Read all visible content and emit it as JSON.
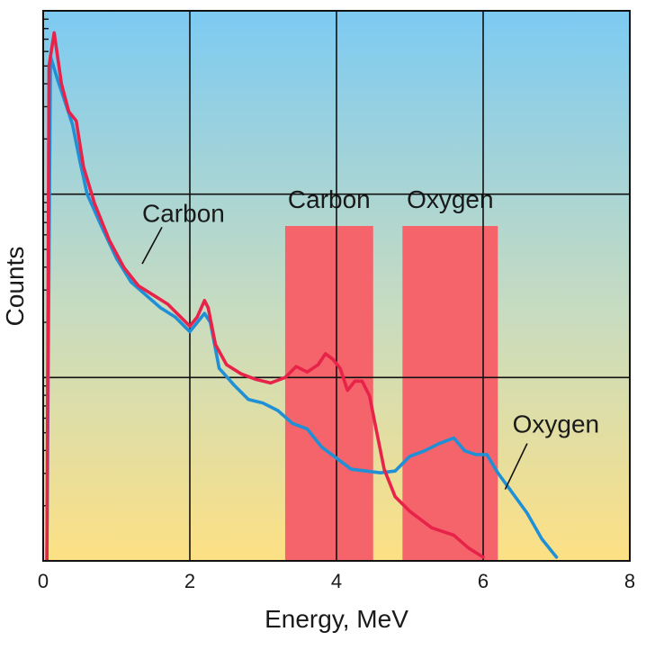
{
  "chart_data": {
    "type": "line",
    "title": "",
    "xlabel": "Energy, MeV",
    "ylabel": "Counts",
    "xlim": [
      0,
      8
    ],
    "y_scale": "log",
    "y_decades": 3,
    "x_ticks": [
      "0",
      "2",
      "4",
      "6",
      "8"
    ],
    "grid": true,
    "colors": {
      "bg_top": "#7ccaf2",
      "bg_mid": "#c8dcc0",
      "bg_bottom": "#fde084",
      "carbon": "#e8234a",
      "oxygen": "#1f8fd6",
      "band": "#f4646a",
      "grid": "#111111"
    },
    "bands": [
      {
        "label": "Carbon",
        "x_start": 3.3,
        "x_end": 4.5
      },
      {
        "label": "Oxygen",
        "x_start": 4.9,
        "x_end": 6.2
      }
    ],
    "series": [
      {
        "name": "Carbon",
        "points": [
          [
            0.05,
            0.0
          ],
          [
            0.08,
            2.7
          ],
          [
            0.15,
            2.88
          ],
          [
            0.25,
            2.6
          ],
          [
            0.35,
            2.45
          ],
          [
            0.45,
            2.4
          ],
          [
            0.55,
            2.15
          ],
          [
            0.7,
            1.95
          ],
          [
            0.9,
            1.75
          ],
          [
            1.1,
            1.6
          ],
          [
            1.3,
            1.5
          ],
          [
            1.5,
            1.45
          ],
          [
            1.7,
            1.4
          ],
          [
            1.9,
            1.32
          ],
          [
            2.0,
            1.28
          ],
          [
            2.1,
            1.33
          ],
          [
            2.2,
            1.42
          ],
          [
            2.25,
            1.38
          ],
          [
            2.35,
            1.18
          ],
          [
            2.5,
            1.07
          ],
          [
            2.7,
            1.02
          ],
          [
            2.9,
            0.99
          ],
          [
            3.1,
            0.97
          ],
          [
            3.3,
            1.0
          ],
          [
            3.45,
            1.06
          ],
          [
            3.6,
            1.03
          ],
          [
            3.75,
            1.07
          ],
          [
            3.85,
            1.13
          ],
          [
            3.95,
            1.1
          ],
          [
            4.05,
            1.05
          ],
          [
            4.15,
            0.93
          ],
          [
            4.25,
            0.98
          ],
          [
            4.35,
            0.98
          ],
          [
            4.45,
            0.9
          ],
          [
            4.55,
            0.7
          ],
          [
            4.65,
            0.5
          ],
          [
            4.8,
            0.35
          ],
          [
            5.0,
            0.27
          ],
          [
            5.3,
            0.18
          ],
          [
            5.6,
            0.14
          ],
          [
            5.8,
            0.07
          ],
          [
            6.0,
            0.02
          ]
        ]
      },
      {
        "name": "Oxygen",
        "points": [
          [
            0.05,
            0.0
          ],
          [
            0.1,
            2.75
          ],
          [
            0.2,
            2.62
          ],
          [
            0.3,
            2.5
          ],
          [
            0.4,
            2.38
          ],
          [
            0.5,
            2.18
          ],
          [
            0.6,
            2.0
          ],
          [
            0.8,
            1.82
          ],
          [
            1.0,
            1.65
          ],
          [
            1.2,
            1.52
          ],
          [
            1.4,
            1.45
          ],
          [
            1.6,
            1.38
          ],
          [
            1.8,
            1.33
          ],
          [
            1.95,
            1.27
          ],
          [
            2.0,
            1.25
          ],
          [
            2.1,
            1.3
          ],
          [
            2.2,
            1.35
          ],
          [
            2.28,
            1.3
          ],
          [
            2.4,
            1.05
          ],
          [
            2.6,
            0.96
          ],
          [
            2.8,
            0.88
          ],
          [
            3.0,
            0.86
          ],
          [
            3.2,
            0.82
          ],
          [
            3.4,
            0.75
          ],
          [
            3.6,
            0.72
          ],
          [
            3.8,
            0.62
          ],
          [
            4.0,
            0.56
          ],
          [
            4.2,
            0.5
          ],
          [
            4.4,
            0.49
          ],
          [
            4.6,
            0.48
          ],
          [
            4.8,
            0.49
          ],
          [
            5.0,
            0.57
          ],
          [
            5.2,
            0.6
          ],
          [
            5.4,
            0.64
          ],
          [
            5.6,
            0.67
          ],
          [
            5.75,
            0.6
          ],
          [
            5.9,
            0.58
          ],
          [
            6.05,
            0.58
          ],
          [
            6.2,
            0.48
          ],
          [
            6.4,
            0.37
          ],
          [
            6.6,
            0.26
          ],
          [
            6.8,
            0.12
          ],
          [
            7.0,
            0.02
          ]
        ]
      }
    ],
    "annotations": [
      {
        "text": "Carbon",
        "target_series": "Carbon"
      },
      {
        "text": "Oxygen",
        "target_series": "Oxygen"
      }
    ]
  }
}
